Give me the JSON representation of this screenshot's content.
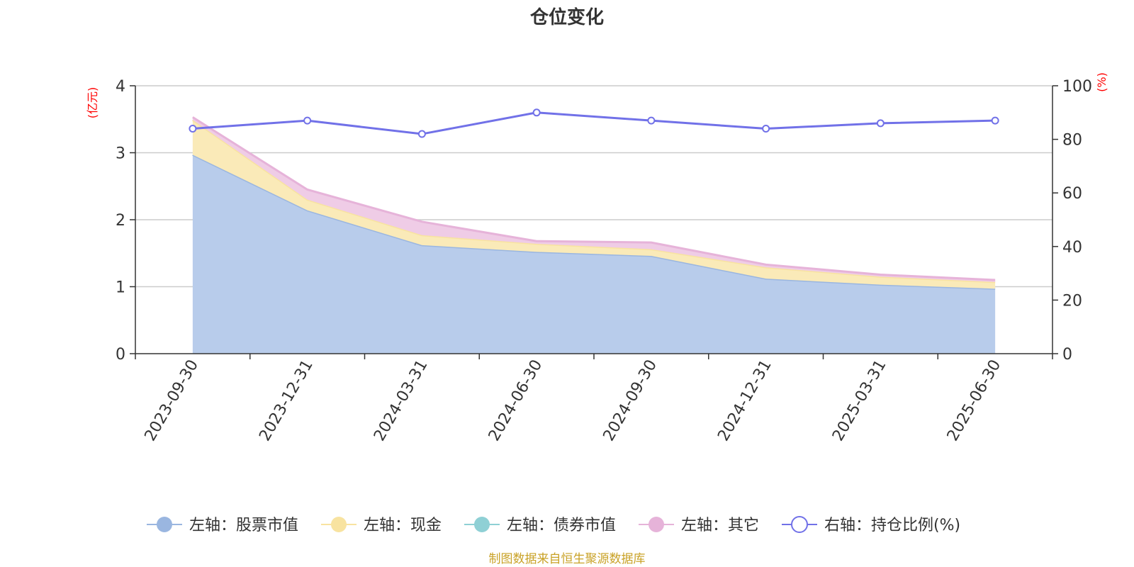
{
  "chart_data": {
    "type": "area",
    "title": "仓位变化",
    "categories": [
      "2023-09-30",
      "2023-12-31",
      "2024-03-31",
      "2024-06-30",
      "2024-09-30",
      "2024-12-31",
      "2025-03-31",
      "2025-06-30"
    ],
    "left_axis": {
      "unit": "(亿元)",
      "ylim": [
        0,
        4
      ],
      "ticks": [
        "0",
        "1",
        "2",
        "3",
        "4"
      ]
    },
    "right_axis": {
      "unit": "(%)",
      "ylim": [
        0,
        100
      ],
      "ticks": [
        "0",
        "20",
        "40",
        "60",
        "80",
        "100"
      ]
    },
    "grid": true,
    "legend_position": "bottom",
    "series": [
      {
        "name": "左轴：股票市值",
        "axis": "left",
        "stack": true,
        "color": "#9ab6e0",
        "fill": "#b8cceb",
        "values": [
          2.97,
          2.14,
          1.62,
          1.52,
          1.46,
          1.12,
          1.03,
          0.97
        ]
      },
      {
        "name": "左轴：现金",
        "axis": "left",
        "stack": true,
        "color": "#f8e3a0",
        "fill": "#faeab8",
        "values": [
          0.52,
          0.16,
          0.15,
          0.12,
          0.1,
          0.17,
          0.12,
          0.1
        ]
      },
      {
        "name": "左轴：债券市值",
        "axis": "left",
        "stack": true,
        "color": "#8fd0d5",
        "fill": "#b7e2e5",
        "values": [
          0,
          0,
          0,
          0,
          0,
          0,
          0,
          0
        ]
      },
      {
        "name": "左轴：其它",
        "axis": "left",
        "stack": true,
        "color": "#e6b3d9",
        "fill": "#efcce6",
        "values": [
          0.04,
          0.15,
          0.2,
          0.04,
          0.1,
          0.04,
          0.03,
          0.03
        ]
      },
      {
        "name": "右轴：持仓比例(%)",
        "axis": "right",
        "stack": false,
        "color": "#7171e8",
        "fill": "none",
        "values": [
          84,
          87,
          82,
          90,
          87,
          84,
          86,
          87
        ]
      }
    ],
    "source": "制图数据来自恒生聚源数据库"
  }
}
